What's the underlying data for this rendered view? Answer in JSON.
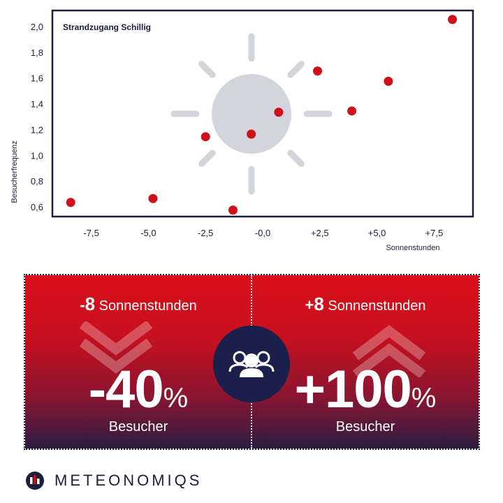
{
  "chart_data": {
    "type": "scatter",
    "title": "Strandzugang Schillig",
    "xlabel": "Sonnenstunden",
    "ylabel": "Besucherfrequenz",
    "xlim": [
      -9.2,
      9.2
    ],
    "ylim": [
      0.53,
      2.13
    ],
    "x_ticks": [
      -7.5,
      -5.0,
      -2.5,
      0.0,
      2.5,
      5.0,
      7.5
    ],
    "x_tick_labels": [
      "-7,5",
      "-5,0",
      "-2,5",
      "-0,0",
      "+2,5",
      "+5,0",
      "+7,5"
    ],
    "y_ticks": [
      0.6,
      0.8,
      1.0,
      1.2,
      1.4,
      1.6,
      1.8,
      2.0
    ],
    "y_tick_labels": [
      "0,6",
      "0,8",
      "1,0",
      "1,2",
      "1,4",
      "1,6",
      "1,8",
      "2,0"
    ],
    "grid": false,
    "series": [
      {
        "x": [
          -8.4,
          -4.8,
          -2.5,
          -1.3,
          -0.5,
          0.7,
          2.4,
          3.9,
          5.5,
          8.3
        ],
        "y": [
          0.64,
          0.67,
          1.15,
          0.58,
          1.17,
          1.34,
          1.66,
          1.35,
          1.58,
          2.06
        ]
      }
    ]
  },
  "colors": {
    "point": "#d0101b",
    "axis": "#1b1f3b",
    "sun": "#d3d5dc",
    "panel_top": "#d90f1a",
    "panel_bottom": "#2c1c42",
    "circle": "#1b1f4b"
  },
  "comparison": {
    "left": {
      "sign": "-",
      "hours": "8",
      "heading_suffix": "Sonnenstunden",
      "value": "-40",
      "unit": "%",
      "subtitle": "Besucher",
      "arrow_icon": "chevron-down-icon"
    },
    "right": {
      "sign": "+",
      "hours": "8",
      "heading_suffix": "Sonnenstunden",
      "value": "+100",
      "unit": "%",
      "subtitle": "Besucher",
      "arrow_icon": "chevron-up-icon"
    },
    "center_icon": "people-group-icon"
  },
  "brand": {
    "name": "METEONOMIQS",
    "logo_icon": "meteonomiqs-logo-icon"
  }
}
